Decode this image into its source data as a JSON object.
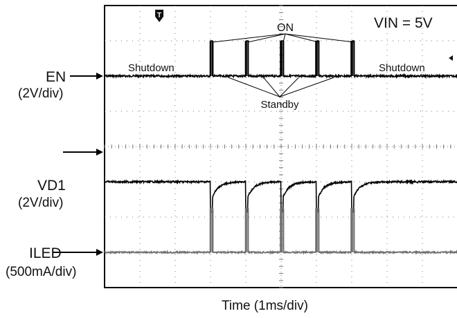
{
  "chart_data": {
    "type": "line",
    "title": "",
    "xlabel": "Time (1ms/div)",
    "ylabel": "",
    "x_unit_per_div": "1ms",
    "x_divisions": 10,
    "y_divisions": 8,
    "grid": true,
    "condition_label": "VIN = 5V",
    "trigger_marker": "T",
    "channels": [
      {
        "name": "EN",
        "scale": "(2V/div)",
        "color": "#000000",
        "baseline_div": 6.0,
        "events": [
          {
            "t": 3.0,
            "v": 1.0
          },
          {
            "t": 4.0,
            "v": 1.0
          },
          {
            "t": 5.0,
            "v": 1.0
          },
          {
            "t": 6.0,
            "v": 1.0
          },
          {
            "t": 7.0,
            "v": 1.0
          }
        ]
      },
      {
        "name": "VD1",
        "scale": "(2V/div)",
        "color": "#000000",
        "baseline_div": 3.0,
        "events": [
          {
            "t": 3.0,
            "v": -0.85
          },
          {
            "t": 4.0,
            "v": -0.85
          },
          {
            "t": 5.0,
            "v": -0.85
          },
          {
            "t": 6.0,
            "v": -0.85
          },
          {
            "t": 7.0,
            "v": -0.85
          }
        ]
      },
      {
        "name": "ILED",
        "scale": "(500mA/div)",
        "color": "#707070",
        "baseline_div": 1.0,
        "events": [
          {
            "t": 3.0,
            "v": 1.25
          },
          {
            "t": 4.0,
            "v": 1.25
          },
          {
            "t": 5.0,
            "v": 1.25
          },
          {
            "t": 6.0,
            "v": 1.25
          },
          {
            "t": 7.0,
            "v": 1.25
          }
        ]
      }
    ],
    "annotations": {
      "on": "ON",
      "standby": "Standby",
      "shutdown_left": "Shutdown",
      "shutdown_right": "Shutdown"
    }
  }
}
